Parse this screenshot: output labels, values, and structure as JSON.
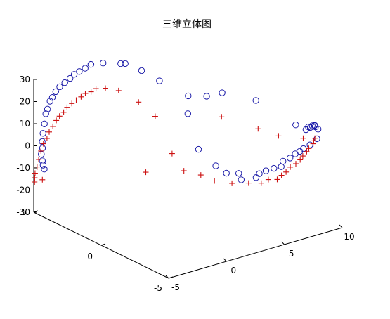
{
  "chart_data": {
    "type": "scatter",
    "projection": "3d",
    "title": "三维立体图",
    "xlabel": "",
    "ylabel": "",
    "zlabel": "",
    "xlim": [
      -5,
      10
    ],
    "ylim": [
      -5,
      5
    ],
    "zlim": [
      -30,
      30
    ],
    "xticks": [
      "-5",
      "0",
      "5",
      "10"
    ],
    "yticks": [
      "-5",
      "0",
      "5"
    ],
    "zticks": [
      "-30",
      "-20",
      "-10",
      "0",
      "10",
      "20",
      "30"
    ],
    "grid": false,
    "legend": "none",
    "colors": {
      "circles": "#1a1aa8",
      "plus": "#cc1111",
      "axes": "#000000"
    },
    "series": [
      {
        "marker": "circle",
        "points": [
          [
            -4.24,
            4.87,
            -11.3
          ],
          [
            -4.3,
            4.9,
            -9.5
          ],
          [
            -4.37,
            4.9,
            -7.5
          ],
          [
            -4.45,
            4.91,
            -4.4
          ],
          [
            -4.46,
            4.81,
            -1.3
          ],
          [
            -4.44,
            4.85,
            1.5
          ],
          [
            -4.42,
            4.81,
            5.3
          ],
          [
            -4.3,
            4.81,
            9.4
          ],
          [
            -4.11,
            4.87,
            13.5
          ],
          [
            -4.02,
            4.82,
            15.6
          ],
          [
            -3.81,
            4.81,
            18.9
          ],
          [
            -3.61,
            4.81,
            20.3
          ],
          [
            -3.3,
            4.83,
            22.4
          ],
          [
            -2.94,
            4.84,
            24.0
          ],
          [
            -2.55,
            4.8,
            25.4
          ],
          [
            -2.13,
            4.77,
            26.8
          ],
          [
            -1.78,
            4.76,
            28.1
          ],
          [
            -1.36,
            4.74,
            28.8
          ],
          [
            -0.88,
            4.72,
            29.6
          ],
          [
            -0.36,
            4.74,
            30.5
          ],
          [
            0.47,
            4.55,
            30.4
          ],
          [
            1.63,
            4.24,
            29.3
          ],
          [
            2.1,
            4.31,
            28.4
          ],
          [
            3.04,
            3.9,
            25.0
          ],
          [
            4.07,
            3.46,
            20.1
          ],
          [
            5.69,
            2.72,
            13.1
          ],
          [
            5.22,
            1.55,
            -6.9
          ],
          [
            5.49,
            0.5,
            -11.6
          ],
          [
            5.3,
            -0.45,
            -11.8
          ],
          [
            5.57,
            -1.13,
            -10.3
          ],
          [
            5.1,
            -1.72,
            -10.7
          ],
          [
            5.49,
            -2.48,
            -8.0
          ],
          [
            5.75,
            -2.5,
            -6.6
          ],
          [
            6.01,
            -2.77,
            -4.9
          ],
          [
            6.3,
            -3.11,
            -3.2
          ],
          [
            6.51,
            -3.47,
            -1.7
          ],
          [
            6.77,
            -3.38,
            0.1
          ],
          [
            7.06,
            -3.65,
            1.9
          ],
          [
            7.36,
            -3.78,
            3.7
          ],
          [
            7.53,
            -3.98,
            5.2
          ],
          [
            7.72,
            -4.08,
            6.4
          ],
          [
            7.98,
            -4.34,
            8.5
          ],
          [
            8.41,
            -4.49,
            11.1
          ],
          [
            8.7,
            -4.33,
            14.5
          ],
          [
            8.54,
            -4.27,
            15.6
          ],
          [
            8.5,
            -4.25,
            16.3
          ],
          [
            8.45,
            -4.27,
            16.3
          ],
          [
            8.28,
            -4.25,
            16.4
          ],
          [
            8.11,
            -4.25,
            15.9
          ],
          [
            8.0,
            -4.21,
            16.2
          ],
          [
            7.79,
            -4.21,
            15.3
          ],
          [
            7.86,
            -3.39,
            14.9
          ],
          [
            8.85,
            0.41,
            13.1
          ],
          [
            9.01,
            3.05,
            8.4
          ],
          [
            8.85,
            4.06,
            4.1
          ],
          [
            7.22,
            4.06,
            -1.3
          ]
        ]
      },
      {
        "marker": "plus",
        "points": [
          [
            -5.07,
            4.88,
            -15.9
          ],
          [
            -5.08,
            4.86,
            -13.9
          ],
          [
            -5.05,
            4.86,
            -11.9
          ],
          [
            -4.93,
            4.81,
            -9.1
          ],
          [
            -4.77,
            4.83,
            -6.0
          ],
          [
            -4.55,
            4.85,
            -2.6
          ],
          [
            -4.3,
            4.88,
            0.2
          ],
          [
            -4.05,
            4.83,
            2.4
          ],
          [
            -3.83,
            4.86,
            4.9
          ],
          [
            -3.56,
            4.82,
            7.1
          ],
          [
            -3.25,
            4.83,
            9.3
          ],
          [
            -2.97,
            4.83,
            10.8
          ],
          [
            -2.66,
            4.79,
            12.2
          ],
          [
            -2.34,
            4.81,
            13.9
          ],
          [
            -1.93,
            4.81,
            15.0
          ],
          [
            -1.56,
            4.8,
            16.0
          ],
          [
            -1.15,
            4.79,
            16.9
          ],
          [
            -0.77,
            4.8,
            17.8
          ],
          [
            -0.35,
            4.74,
            18.1
          ],
          [
            0.15,
            4.8,
            18.6
          ],
          [
            0.8,
            4.66,
            18.2
          ],
          [
            1.67,
            4.43,
            16.5
          ],
          [
            2.65,
            3.79,
            11.7
          ],
          [
            3.6,
            3.37,
            5.1
          ],
          [
            4.26,
            1.81,
            -15.9
          ],
          [
            4.59,
            0.84,
            -15.4
          ],
          [
            4.65,
            -0.12,
            -15.3
          ],
          [
            5.31,
            -0.85,
            -15.2
          ],
          [
            5.82,
            -1.65,
            -13.5
          ],
          [
            6.08,
            -2.36,
            -11.8
          ],
          [
            6.32,
            -2.68,
            -9.6
          ],
          [
            6.4,
            -3.27,
            -7.9
          ],
          [
            6.57,
            -3.44,
            -5.8
          ],
          [
            6.72,
            -3.65,
            -3.9
          ],
          [
            6.98,
            -3.74,
            -1.8
          ],
          [
            7.23,
            -3.94,
            -0.1
          ],
          [
            7.44,
            -4.08,
            1.8
          ],
          [
            7.56,
            -4.17,
            3.6
          ],
          [
            7.79,
            -4.26,
            5.5
          ],
          [
            7.94,
            -4.29,
            6.8
          ],
          [
            8.08,
            -4.49,
            9.3
          ],
          [
            8.05,
            -4.56,
            10.9
          ],
          [
            8.06,
            -4.64,
            12.3
          ],
          [
            7.42,
            -4.32,
            12.3
          ],
          [
            6.54,
            -3.25,
            11.5
          ],
          [
            6.15,
            -2.07,
            11.8
          ],
          [
            6.1,
            0.6,
            9.3
          ],
          [
            4.79,
            3.14,
            -12.9
          ],
          [
            3.02,
            3.57,
            -19.9
          ],
          [
            -4.37,
            4.9,
            -16.0
          ]
        ]
      }
    ]
  }
}
